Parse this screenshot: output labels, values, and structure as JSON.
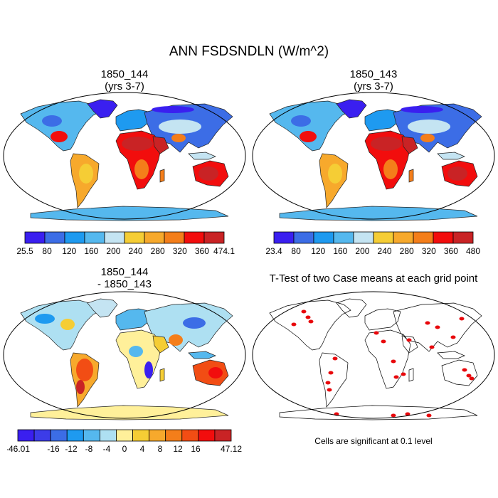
{
  "title": "ANN FSDSNDLN (W/m^2)",
  "panels": [
    {
      "line1": "1850_144",
      "line2": "(yrs 3-7)"
    },
    {
      "line1": "1850_143",
      "line2": "(yrs 3-7)"
    },
    {
      "line1": "1850_144",
      "line2": "- 1850_143"
    },
    {
      "line1": "T-Test of two Case means at each grid point",
      "line2": ""
    }
  ],
  "footnote": "Cells are significant at 0.1 level",
  "chart_data": [
    {
      "type": "heatmap",
      "title": "1850_144 (yrs 3-7)",
      "units": "W/m^2",
      "colorbar": {
        "labels": [
          "25.5",
          "80",
          "120",
          "160",
          "200",
          "240",
          "280",
          "320",
          "360",
          "474.1"
        ],
        "colors": [
          "#3a1ff0",
          "#3c6de6",
          "#1e9af0",
          "#55b8ee",
          "#c4e4f2",
          "#f5cd35",
          "#f7a92c",
          "#f47e1a",
          "#f20d0d",
          "#c92325"
        ]
      }
    },
    {
      "type": "heatmap",
      "title": "1850_143 (yrs 3-7)",
      "units": "W/m^2",
      "colorbar": {
        "labels": [
          "23.4",
          "80",
          "120",
          "160",
          "200",
          "240",
          "280",
          "320",
          "360",
          "480"
        ],
        "colors": [
          "#3a1ff0",
          "#3c6de6",
          "#1e9af0",
          "#55b8ee",
          "#c4e4f2",
          "#f5cd35",
          "#f7a92c",
          "#f47e1a",
          "#f20d0d",
          "#c92325"
        ]
      }
    },
    {
      "type": "heatmap",
      "title": "1850_144 - 1850_143",
      "units": "W/m^2",
      "colorbar": {
        "labels": [
          "-46.01",
          "",
          "-16",
          "-12",
          "-8",
          "-4",
          "0",
          "4",
          "8",
          "12",
          "16",
          "",
          "47.12"
        ],
        "colors": [
          "#3a1ff0",
          "#3c3ce8",
          "#3c6de6",
          "#1e9af0",
          "#55b8ee",
          "#aee0f2",
          "#fff09a",
          "#f5cd35",
          "#f7a92c",
          "#f47e1a",
          "#f24d14",
          "#f20d0d",
          "#c92325"
        ]
      }
    },
    {
      "type": "heatmap",
      "title": "T-Test of two Case means at each grid point",
      "note": "Cells are significant at 0.1 level",
      "colors": {
        "significant": "#e8070b",
        "coast": "#000000"
      }
    }
  ]
}
